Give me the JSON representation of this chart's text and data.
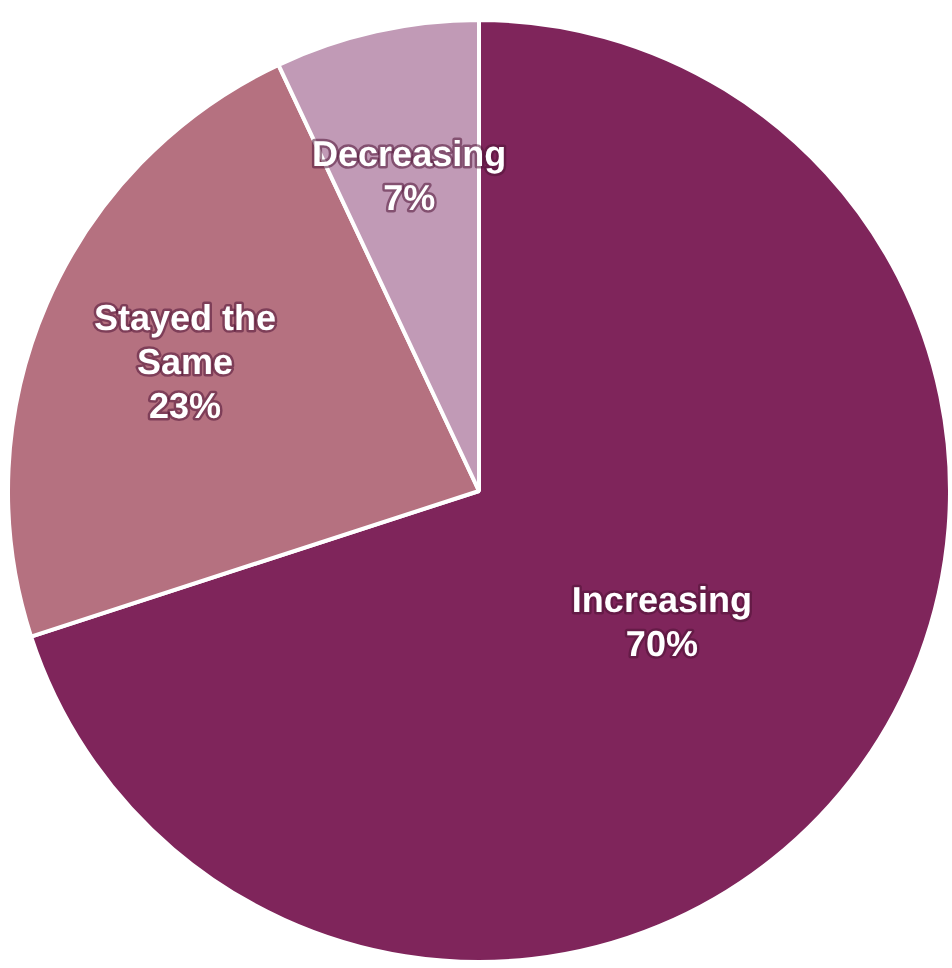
{
  "chart_data": {
    "type": "pie",
    "categories": [
      "Increasing",
      "Stayed the Same",
      "Decreasing"
    ],
    "values": [
      70,
      23,
      7
    ],
    "value_labels": [
      "70%",
      "23%",
      "7%"
    ],
    "colors": [
      "#7f255b",
      "#b57180",
      "#c19ab6"
    ],
    "legend": false
  }
}
